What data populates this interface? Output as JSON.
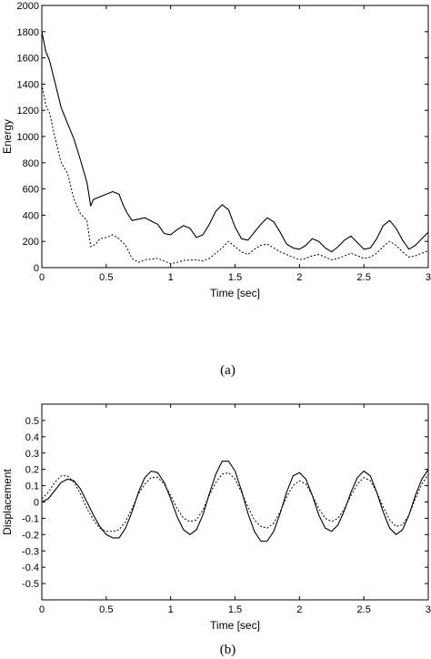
{
  "chart_data": [
    {
      "type": "line",
      "caption": "(a)",
      "xlabel": "Time [sec]",
      "ylabel": "Energy",
      "xlim": [
        0,
        3
      ],
      "ylim": [
        0,
        2000
      ],
      "xticks": [
        "0",
        "0.5",
        "1",
        "1.5",
        "2",
        "2.5",
        "3"
      ],
      "yticks": [
        "0",
        "200",
        "400",
        "600",
        "800",
        "1000",
        "1200",
        "1400",
        "1600",
        "1800",
        "2000"
      ],
      "grid": false,
      "legend": "none",
      "series": [
        {
          "style": "solid",
          "x": [
            0,
            0.03,
            0.06,
            0.1,
            0.15,
            0.2,
            0.25,
            0.3,
            0.35,
            0.38,
            0.4,
            0.45,
            0.5,
            0.55,
            0.6,
            0.63,
            0.66,
            0.7,
            0.8,
            0.9,
            0.95,
            1.0,
            1.05,
            1.1,
            1.15,
            1.2,
            1.25,
            1.3,
            1.35,
            1.4,
            1.45,
            1.5,
            1.55,
            1.6,
            1.65,
            1.7,
            1.75,
            1.8,
            1.85,
            1.9,
            1.95,
            2.0,
            2.05,
            2.1,
            2.15,
            2.2,
            2.25,
            2.3,
            2.35,
            2.4,
            2.45,
            2.5,
            2.55,
            2.6,
            2.65,
            2.7,
            2.75,
            2.8,
            2.85,
            2.9,
            2.95,
            3.0
          ],
          "y": [
            1800,
            1650,
            1580,
            1420,
            1220,
            1100,
            980,
            820,
            650,
            470,
            520,
            540,
            560,
            580,
            560,
            480,
            420,
            360,
            380,
            330,
            260,
            250,
            290,
            320,
            300,
            230,
            250,
            330,
            430,
            480,
            440,
            310,
            220,
            210,
            270,
            330,
            380,
            350,
            270,
            180,
            150,
            140,
            170,
            220,
            200,
            150,
            120,
            160,
            210,
            240,
            190,
            140,
            150,
            220,
            320,
            360,
            300,
            210,
            140,
            170,
            220,
            270
          ]
        },
        {
          "style": "dotted",
          "x": [
            0,
            0.03,
            0.06,
            0.1,
            0.15,
            0.2,
            0.25,
            0.3,
            0.35,
            0.38,
            0.42,
            0.45,
            0.5,
            0.55,
            0.6,
            0.65,
            0.7,
            0.75,
            0.8,
            0.9,
            1.0,
            1.05,
            1.1,
            1.2,
            1.25,
            1.3,
            1.35,
            1.4,
            1.45,
            1.5,
            1.55,
            1.6,
            1.65,
            1.7,
            1.75,
            1.8,
            1.85,
            1.9,
            1.95,
            2.0,
            2.05,
            2.1,
            2.15,
            2.2,
            2.25,
            2.3,
            2.35,
            2.4,
            2.45,
            2.5,
            2.55,
            2.6,
            2.65,
            2.7,
            2.75,
            2.8,
            2.85,
            2.9,
            2.95,
            3.0
          ],
          "y": [
            1400,
            1240,
            1180,
            1000,
            800,
            720,
            520,
            410,
            360,
            160,
            180,
            220,
            230,
            250,
            220,
            170,
            70,
            40,
            60,
            70,
            30,
            40,
            55,
            60,
            50,
            70,
            110,
            150,
            200,
            160,
            120,
            100,
            140,
            170,
            180,
            150,
            120,
            100,
            80,
            60,
            70,
            90,
            100,
            80,
            60,
            70,
            90,
            110,
            90,
            70,
            80,
            110,
            160,
            200,
            170,
            120,
            80,
            90,
            110,
            130
          ]
        }
      ]
    },
    {
      "type": "line",
      "caption": "(b)",
      "xlabel": "Time [sec]",
      "ylabel": "Displacement",
      "xlim": [
        0,
        3
      ],
      "ylim": [
        -0.6,
        0.6
      ],
      "xticks": [
        "0",
        "0.5",
        "1",
        "1.5",
        "2",
        "2.5",
        "3"
      ],
      "yticks": [
        "-0.5",
        "-0.4",
        "-0.3",
        "-0.2",
        "-0.1",
        "0",
        "0.1",
        "0.2",
        "0.3",
        "0.4",
        "0.5"
      ],
      "grid": false,
      "legend": "none",
      "series": [
        {
          "style": "solid",
          "x": [
            0,
            0.05,
            0.1,
            0.15,
            0.2,
            0.25,
            0.3,
            0.35,
            0.4,
            0.45,
            0.5,
            0.55,
            0.6,
            0.65,
            0.7,
            0.75,
            0.8,
            0.85,
            0.9,
            0.95,
            1.0,
            1.05,
            1.1,
            1.15,
            1.2,
            1.25,
            1.3,
            1.35,
            1.4,
            1.45,
            1.5,
            1.55,
            1.6,
            1.65,
            1.7,
            1.75,
            1.8,
            1.85,
            1.9,
            1.95,
            2.0,
            2.05,
            2.1,
            2.15,
            2.2,
            2.25,
            2.3,
            2.35,
            2.4,
            2.45,
            2.5,
            2.55,
            2.6,
            2.65,
            2.7,
            2.75,
            2.8,
            2.85,
            2.9,
            2.95,
            3.0
          ],
          "y": [
            0,
            0.02,
            0.07,
            0.12,
            0.14,
            0.13,
            0.08,
            0.0,
            -0.08,
            -0.15,
            -0.2,
            -0.22,
            -0.22,
            -0.16,
            -0.06,
            0.06,
            0.15,
            0.19,
            0.18,
            0.12,
            0.02,
            -0.09,
            -0.17,
            -0.2,
            -0.17,
            -0.08,
            0.05,
            0.17,
            0.25,
            0.25,
            0.19,
            0.07,
            -0.07,
            -0.18,
            -0.24,
            -0.24,
            -0.18,
            -0.07,
            0.06,
            0.16,
            0.18,
            0.14,
            0.04,
            -0.08,
            -0.16,
            -0.18,
            -0.14,
            -0.05,
            0.06,
            0.15,
            0.19,
            0.16,
            0.06,
            -0.06,
            -0.16,
            -0.2,
            -0.17,
            -0.08,
            0.04,
            0.14,
            0.2
          ]
        },
        {
          "style": "dotted",
          "x": [
            0,
            0.05,
            0.1,
            0.15,
            0.2,
            0.25,
            0.3,
            0.35,
            0.4,
            0.45,
            0.5,
            0.55,
            0.6,
            0.65,
            0.7,
            0.75,
            0.8,
            0.85,
            0.9,
            0.95,
            1.0,
            1.05,
            1.1,
            1.15,
            1.2,
            1.25,
            1.3,
            1.35,
            1.4,
            1.45,
            1.5,
            1.55,
            1.6,
            1.65,
            1.7,
            1.75,
            1.8,
            1.85,
            1.9,
            1.95,
            2.0,
            2.05,
            2.1,
            2.15,
            2.2,
            2.25,
            2.3,
            2.35,
            2.4,
            2.45,
            2.5,
            2.55,
            2.6,
            2.65,
            2.7,
            2.75,
            2.8,
            2.85,
            2.9,
            2.95,
            3.0
          ],
          "y": [
            0.02,
            0.06,
            0.12,
            0.16,
            0.16,
            0.12,
            0.05,
            -0.04,
            -0.11,
            -0.16,
            -0.18,
            -0.18,
            -0.17,
            -0.12,
            -0.04,
            0.05,
            0.11,
            0.15,
            0.15,
            0.11,
            0.04,
            -0.04,
            -0.1,
            -0.12,
            -0.11,
            -0.05,
            0.04,
            0.12,
            0.17,
            0.18,
            0.14,
            0.06,
            -0.03,
            -0.11,
            -0.15,
            -0.16,
            -0.13,
            -0.06,
            0.03,
            0.1,
            0.13,
            0.11,
            0.04,
            -0.04,
            -0.1,
            -0.12,
            -0.1,
            -0.04,
            0.04,
            0.11,
            0.15,
            0.13,
            0.06,
            -0.03,
            -0.11,
            -0.15,
            -0.14,
            -0.08,
            0.02,
            0.11,
            0.17
          ]
        }
      ]
    }
  ]
}
